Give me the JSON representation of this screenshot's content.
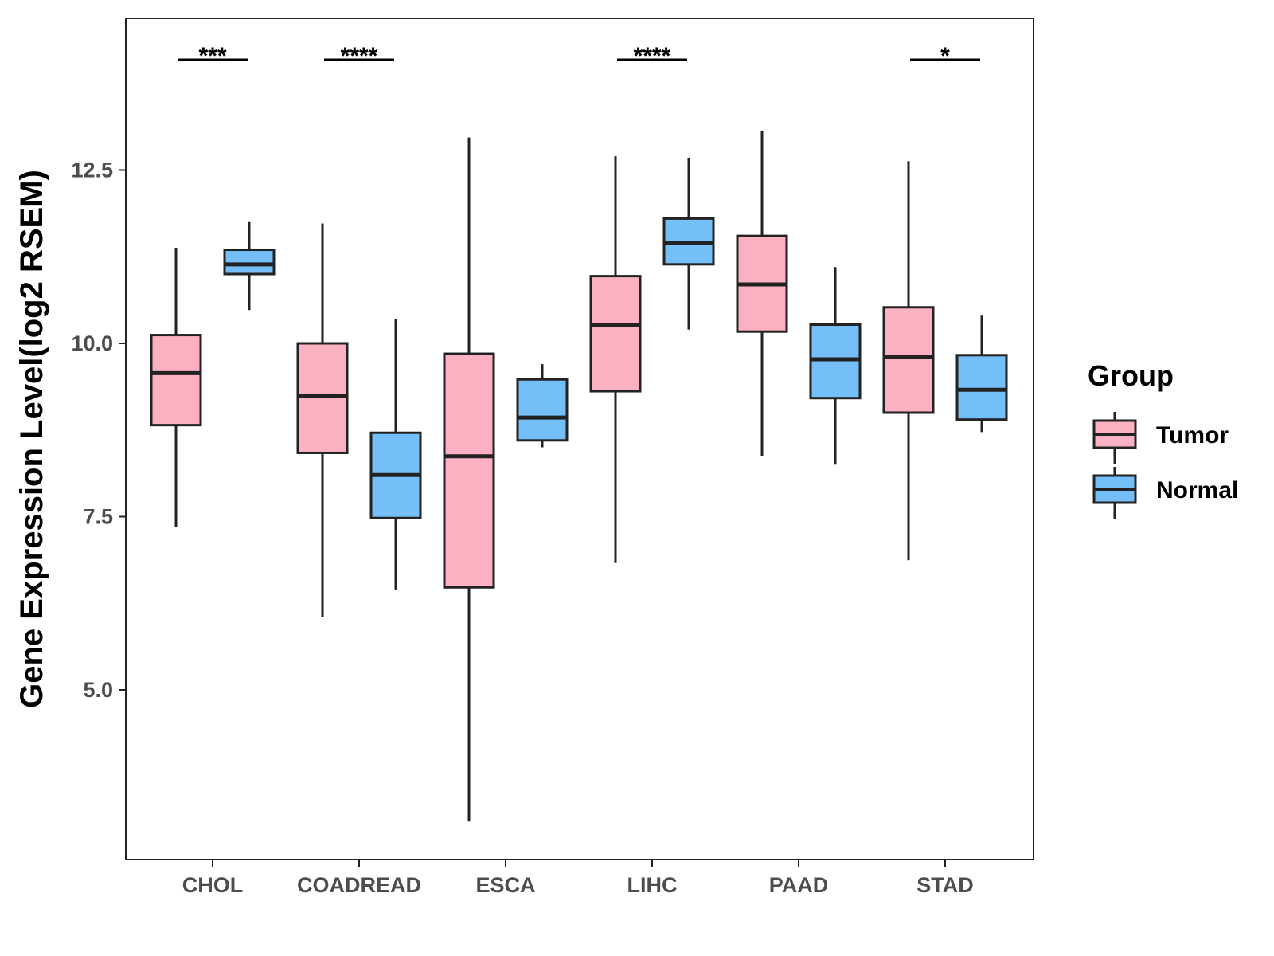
{
  "chart_data": {
    "type": "boxplot",
    "title": "",
    "xlabel": "",
    "ylabel": "Gene Expression Level(log2 RSEM)",
    "ylim": [
      2.8,
      14.9
    ],
    "yticks": [
      5.0,
      7.5,
      10.0,
      12.5
    ],
    "ytick_labels": [
      "5.0",
      "7.5",
      "10.0",
      "12.5"
    ],
    "grid": false,
    "categories": [
      "CHOL",
      "COADREAD",
      "ESCA",
      "LIHC",
      "PAAD",
      "STAD"
    ],
    "legend": {
      "title": "Group",
      "position": "right",
      "entries": [
        "Tumor",
        "Normal"
      ]
    },
    "colors": {
      "Tumor": "#fbb1c1",
      "Normal": "#74bff7",
      "stroke": "#222222",
      "axis": "#222222"
    },
    "series": [
      {
        "name": "Tumor",
        "boxes": [
          {
            "category": "CHOL",
            "min": 7.35,
            "q1": 8.82,
            "median": 9.57,
            "q3": 10.12,
            "max": 11.38
          },
          {
            "category": "COADREAD",
            "min": 6.05,
            "q1": 8.42,
            "median": 9.24,
            "q3": 10.0,
            "max": 11.73
          },
          {
            "category": "ESCA",
            "min": 3.1,
            "q1": 6.48,
            "median": 8.37,
            "q3": 9.85,
            "max": 12.97
          },
          {
            "category": "LIHC",
            "min": 6.83,
            "q1": 9.31,
            "median": 10.26,
            "q3": 10.97,
            "max": 12.7
          },
          {
            "category": "PAAD",
            "min": 8.38,
            "q1": 10.17,
            "median": 10.85,
            "q3": 11.55,
            "max": 13.07
          },
          {
            "category": "STAD",
            "min": 6.87,
            "q1": 9.0,
            "median": 9.8,
            "q3": 10.52,
            "max": 12.63
          }
        ]
      },
      {
        "name": "Normal",
        "boxes": [
          {
            "category": "CHOL",
            "min": 10.48,
            "q1": 11.0,
            "median": 11.14,
            "q3": 11.35,
            "max": 11.75
          },
          {
            "category": "COADREAD",
            "min": 6.45,
            "q1": 7.48,
            "median": 8.1,
            "q3": 8.71,
            "max": 10.35
          },
          {
            "category": "ESCA",
            "min": 8.5,
            "q1": 8.6,
            "median": 8.93,
            "q3": 9.48,
            "max": 9.7
          },
          {
            "category": "LIHC",
            "min": 10.2,
            "q1": 11.14,
            "median": 11.45,
            "q3": 11.8,
            "max": 12.68
          },
          {
            "category": "PAAD",
            "min": 8.25,
            "q1": 9.21,
            "median": 9.77,
            "q3": 10.27,
            "max": 11.1
          },
          {
            "category": "STAD",
            "min": 8.72,
            "q1": 8.9,
            "median": 9.33,
            "q3": 9.83,
            "max": 10.4
          }
        ]
      }
    ],
    "significance": [
      {
        "category": "CHOL",
        "label": "***"
      },
      {
        "category": "COADREAD",
        "label": "****"
      },
      {
        "category": "LIHC",
        "label": "****"
      },
      {
        "category": "STAD",
        "label": "*"
      }
    ]
  }
}
